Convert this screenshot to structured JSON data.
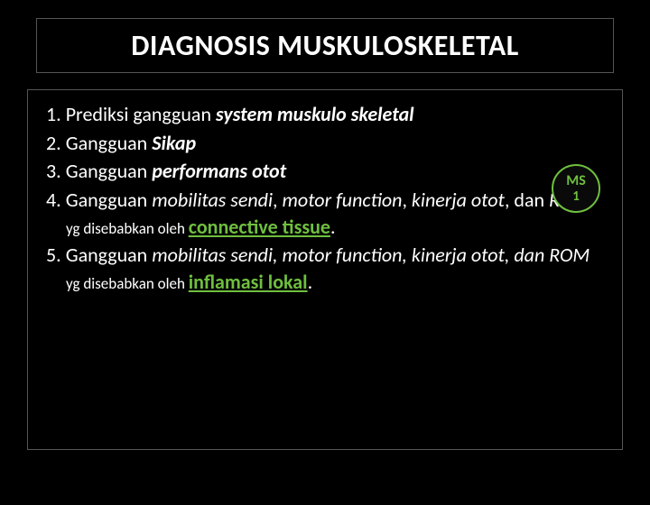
{
  "title": "DIAGNOSIS MUSKULOSKELETAL",
  "badge": {
    "line1": "MS",
    "line2": "1"
  },
  "items": {
    "i1": {
      "num": "1.",
      "pre": " Prediksi gangguan ",
      "bi": "system muskulo skeletal"
    },
    "i2": {
      "num": "2.",
      "pre": " Gangguan ",
      "bi": "Sikap"
    },
    "i3": {
      "num": "3.",
      "pre": " Gangguan ",
      "bi": "performans otot"
    },
    "i4": {
      "num": "4.",
      "pre": " Gangguan ",
      "p1": "mobilitas sendi",
      "c1": ", ",
      "p2": "motor function",
      "c2": ", ",
      "p3": "kinerja otot",
      "c3": ", dan ",
      "p4": "ROM",
      "small": " yg disebabkan oleh ",
      "em": "connective tissue",
      "dot": "."
    },
    "i5": {
      "num": "5.",
      "pre": " Gangguan ",
      "p1": "mobilitas sendi, motor function, kinerja otot, dan ROM",
      "small": " yg disebabkan oleh ",
      "em": "inflamasi lokal",
      "dot": "."
    }
  },
  "colors": {
    "background": "#000000",
    "text": "#ffffff",
    "accent": "#6fbf3f",
    "border": "#555555"
  }
}
